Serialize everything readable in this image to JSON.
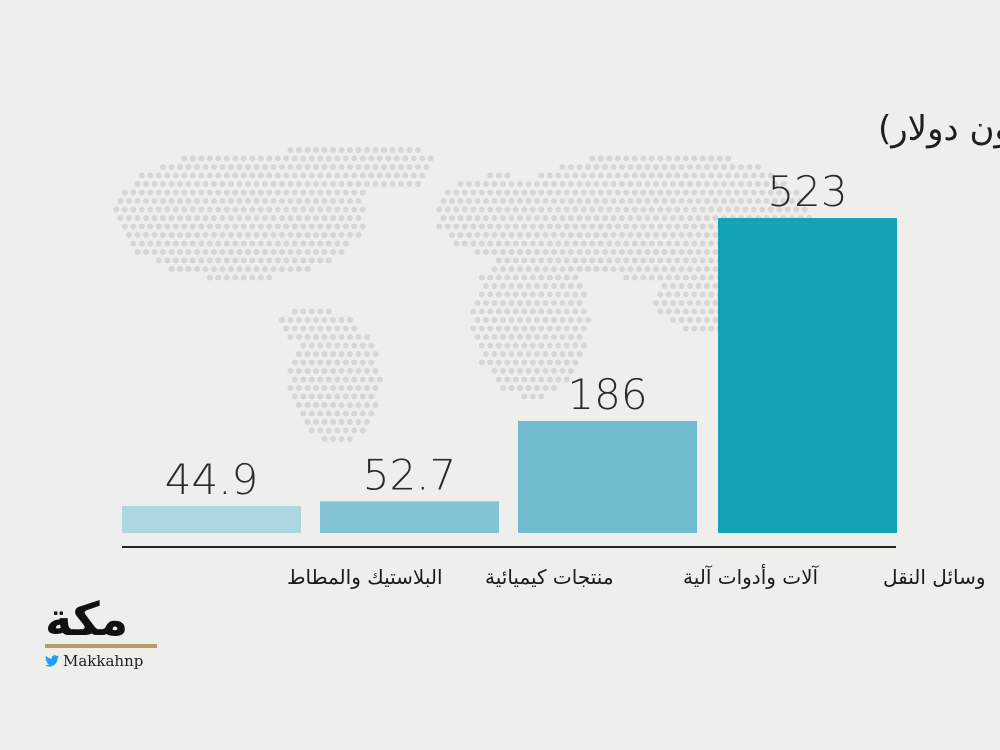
{
  "chart_data": {
    "type": "bar",
    "title": "أبرز واردات السعودية من كندا (مليون دولار)",
    "categories": [
      "البلاستيك والمطاط",
      "منتجات كيميائية",
      "آلات وأدوات آلية",
      "وسائل النقل"
    ],
    "values": [
      44.9,
      52.7,
      186,
      523
    ],
    "value_labels": [
      "44.9",
      "52.7",
      "186",
      "523"
    ],
    "colors": [
      "#abd7e0",
      "#84c3d3",
      "#6ebccc",
      "#13a3b9"
    ],
    "ylim": [
      0,
      523
    ],
    "grid": false,
    "legend": "none"
  },
  "branding": {
    "logo_text": "مكة",
    "handle": "Makkahnp",
    "handle_icon": "twitter-bird-icon",
    "accent": "#b89b6a"
  }
}
